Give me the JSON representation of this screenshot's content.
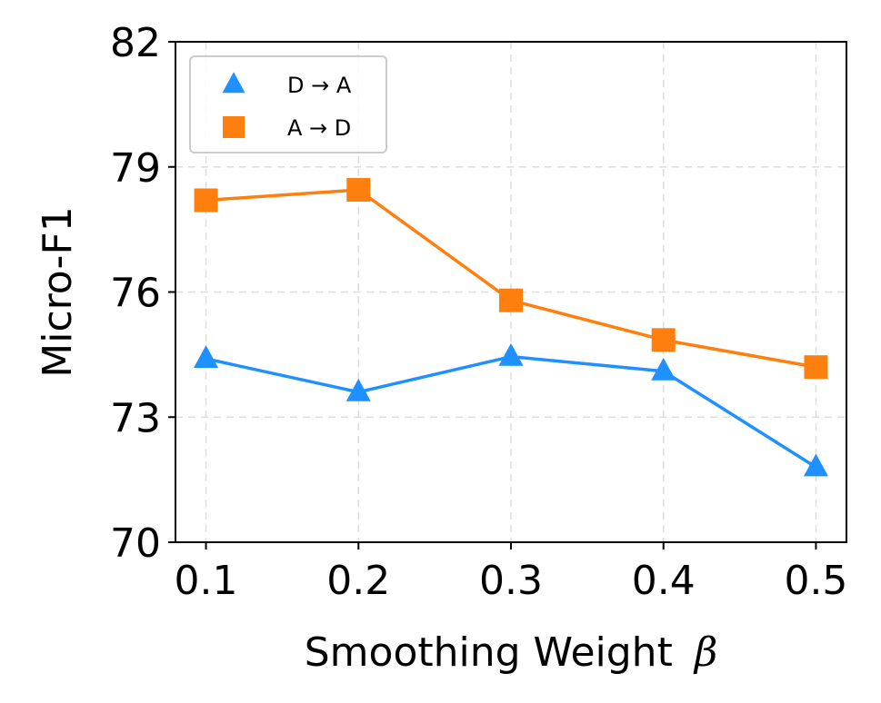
{
  "chart_data": {
    "type": "line",
    "title": "",
    "xlabel": "Smoothing Weight",
    "xlabel_symbol": "β",
    "ylabel": "Micro-F1",
    "x": [
      0.1,
      0.2,
      0.3,
      0.4,
      0.5
    ],
    "x_tick_labels": [
      "0.1",
      "0.2",
      "0.3",
      "0.4",
      "0.5"
    ],
    "xlim": [
      0.08,
      0.52
    ],
    "ylim": [
      70,
      82
    ],
    "y_ticks": [
      70,
      73,
      76,
      79,
      82
    ],
    "y_tick_labels": [
      "70",
      "73",
      "76",
      "79",
      "82"
    ],
    "grid": true,
    "legend_position": "top-left",
    "series": [
      {
        "name": "D → A",
        "marker": "triangle",
        "color": "#1e90ff",
        "values": [
          74.4,
          73.6,
          74.45,
          74.1,
          71.8
        ]
      },
      {
        "name": "A → D",
        "marker": "square",
        "color": "#ff7f0e",
        "values": [
          78.2,
          78.45,
          75.8,
          74.85,
          74.2
        ]
      }
    ]
  }
}
